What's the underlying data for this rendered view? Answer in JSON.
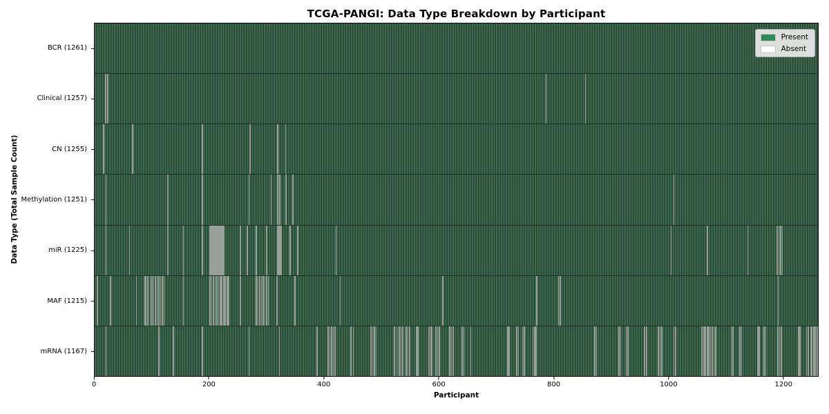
{
  "figure": {
    "title": "TCGA-PANGI: Data Type Breakdown by Participant",
    "x_axis_title": "Participant",
    "y_axis_title": "Data Type (Total Sample Count)"
  },
  "chart_data": {
    "type": "heatmap",
    "title": "TCGA-PANGI: Data Type Breakdown by Participant",
    "xlabel": "Participant",
    "ylabel": "Data Type (Total Sample Count)",
    "x_ticks": [
      0,
      200,
      400,
      600,
      800,
      1000,
      1200
    ],
    "x_range": [
      0,
      1261
    ],
    "total_participants": 1261,
    "grid": false,
    "legend_position": "upper-right",
    "legend": [
      {
        "label": "Present",
        "color": "#2e8b57"
      },
      {
        "label": "Absent",
        "color": "#ffffff"
      }
    ],
    "colors": {
      "present": "#2e8b57",
      "absent": "#ffffff",
      "stripe_light": "#3e6a50",
      "stripe_dark": "#254531",
      "row_separator": "#1b2e20",
      "absent_line": "#98a099",
      "legend_bg": "#dcdfdc"
    },
    "rows": [
      {
        "data_type": "BCR",
        "label": "BCR (1261)",
        "present_count": 1261,
        "absent_count": 0,
        "absent_indices": []
      },
      {
        "data_type": "Clinical",
        "label": "Clinical (1257)",
        "present_count": 1257,
        "absent_count": 4,
        "absent_indices": [
          18,
          22,
          786,
          855
        ]
      },
      {
        "data_type": "CN",
        "label": "CN (1255)",
        "present_count": 1255,
        "absent_count": 6,
        "absent_indices": [
          15,
          65,
          187,
          270,
          318,
          332
        ]
      },
      {
        "data_type": "Methylation",
        "label": "Methylation (1251)",
        "present_count": 1251,
        "absent_count": 10,
        "absent_indices": [
          19,
          127,
          187,
          268,
          307,
          318,
          322,
          333,
          345,
          1009
        ]
      },
      {
        "data_type": "miR",
        "label": "miR (1225)",
        "present_count": 1225,
        "absent_count": 36,
        "absent_indices": [
          19,
          60,
          127,
          154,
          187,
          200,
          202,
          204,
          206,
          208,
          210,
          212,
          214,
          216,
          218,
          220,
          222,
          224,
          253,
          265,
          281,
          299,
          318,
          320,
          322,
          324,
          340,
          353,
          420,
          1004,
          1067,
          1138,
          1189,
          1192,
          1195,
          1198
        ]
      },
      {
        "data_type": "MAF",
        "label": "MAF (1215)",
        "present_count": 1215,
        "absent_count": 46,
        "absent_indices": [
          4,
          27,
          72,
          87,
          89,
          92,
          96,
          99,
          102,
          105,
          108,
          111,
          114,
          117,
          120,
          154,
          200,
          203,
          206,
          209,
          212,
          215,
          218,
          221,
          224,
          227,
          230,
          233,
          253,
          281,
          284,
          287,
          290,
          293,
          296,
          299,
          302,
          317,
          348,
          349,
          427,
          606,
          770,
          808,
          811,
          1191
        ]
      },
      {
        "data_type": "mRNA",
        "label": "mRNA (1167)",
        "present_count": 1167,
        "absent_count": 94,
        "absent_indices": [
          19,
          111,
          136,
          187,
          268,
          321,
          387,
          406,
          409,
          412,
          415,
          418,
          446,
          450,
          481,
          484,
          487,
          490,
          522,
          526,
          530,
          533,
          536,
          542,
          545,
          548,
          560,
          563,
          582,
          585,
          587,
          594,
          597,
          600,
          618,
          621,
          624,
          640,
          643,
          655,
          719,
          722,
          735,
          738,
          745,
          748,
          763,
          766,
          769,
          871,
          874,
          913,
          916,
          926,
          929,
          958,
          961,
          982,
          985,
          988,
          1009,
          1012,
          1058,
          1061,
          1064,
          1067,
          1070,
          1073,
          1076,
          1079,
          1082,
          1109,
          1112,
          1124,
          1127,
          1155,
          1158,
          1166,
          1169,
          1190,
          1193,
          1196,
          1226,
          1229,
          1240,
          1243,
          1248,
          1250,
          1252,
          1254,
          1256,
          1258,
          1259,
          1260
        ]
      }
    ]
  }
}
